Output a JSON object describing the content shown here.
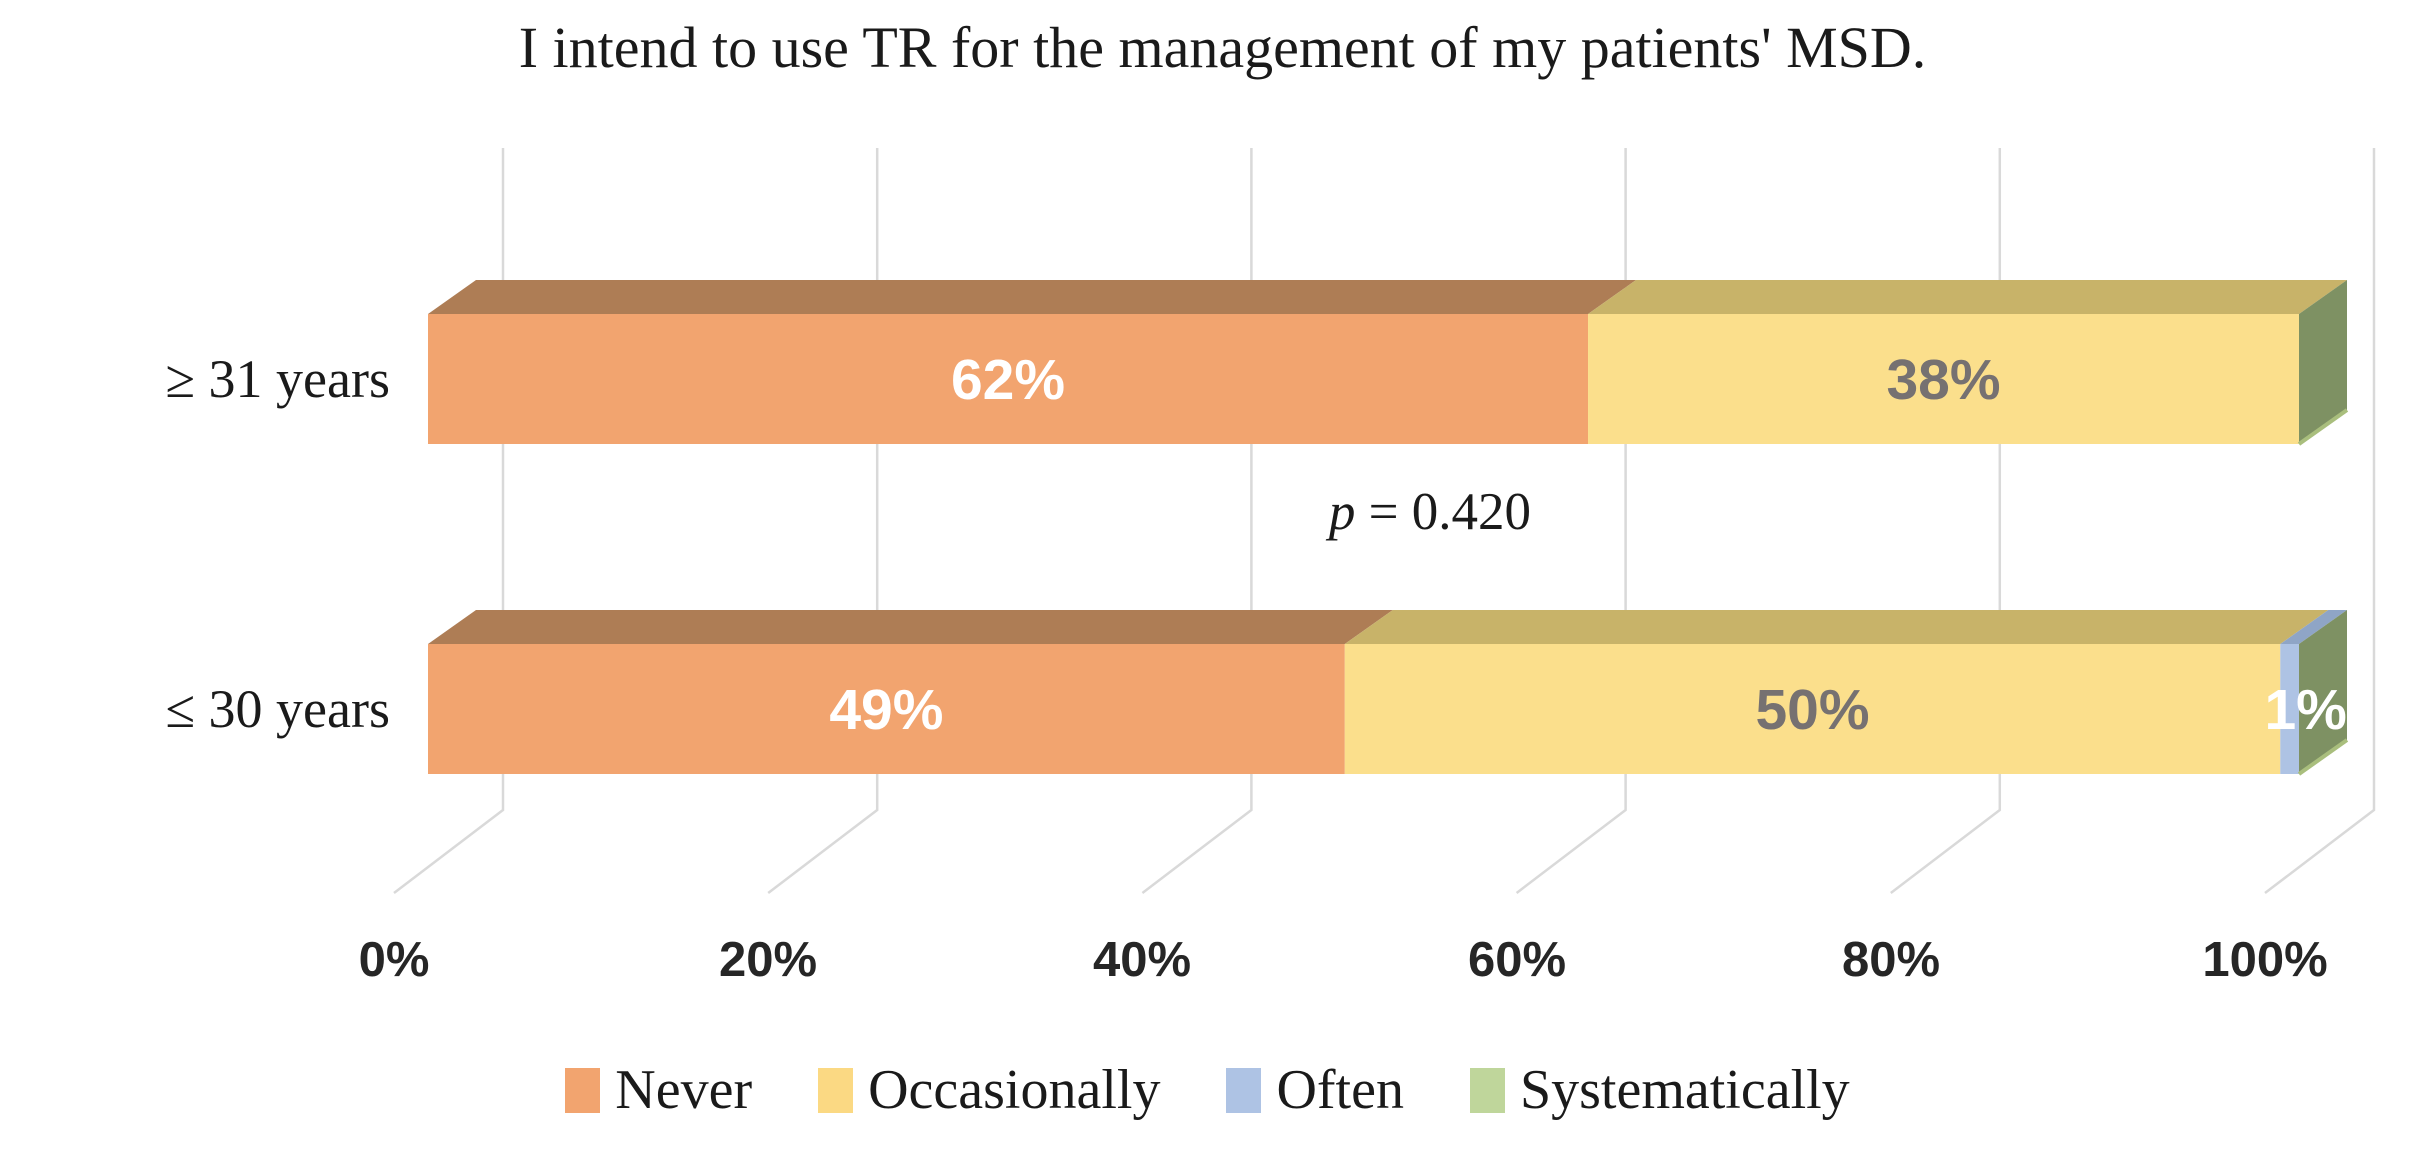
{
  "title": "I intend to use TR for the management of my patients' MSD.",
  "annotation": {
    "var": "p",
    "rest": " = 0.420"
  },
  "chart_data": {
    "type": "bar",
    "subtype": "stacked-horizontal-3d",
    "title": "I intend to use TR for the management of my patients' MSD.",
    "categories": [
      "≥ 31 years",
      "≤ 30 years"
    ],
    "series": [
      {
        "name": "Never",
        "values": [
          62,
          49
        ]
      },
      {
        "name": "Occasionally",
        "values": [
          38,
          50
        ]
      },
      {
        "name": "Often",
        "values": [
          0,
          1
        ]
      },
      {
        "name": "Systematically",
        "values": [
          0,
          0
        ]
      }
    ],
    "data_labels": [
      [
        "62%",
        "38%",
        "",
        ""
      ],
      [
        "49%",
        "50%",
        "1%",
        ""
      ]
    ],
    "annotation": "p = 0.420",
    "x_ticks": [
      "0%",
      "20%",
      "40%",
      "60%",
      "80%",
      "100%"
    ],
    "xlim": [
      0,
      100
    ],
    "grid": true,
    "legend": [
      "Never",
      "Occasionally",
      "Often",
      "Systematically"
    ],
    "legend_position": "bottom"
  },
  "colors": {
    "series_front": [
      "#F2A46F",
      "#FBDF8C",
      "#AEC3E4",
      "#BFD69B"
    ],
    "series_top": [
      "#AE7D55",
      "#C8B369",
      "#8FA5C6",
      "#9CB77A"
    ],
    "series_label": [
      "#FFFFFF",
      "#767171",
      "#FFFFFF",
      "#FFFFFF"
    ],
    "legend_swatches": [
      "#F2A46F",
      "#FBD983",
      "#AEC3E4",
      "#BFD69B"
    ],
    "end_cap": "#7E9163",
    "end_cap_edge": "#A9BE7D",
    "gridline": "#D9D9D9",
    "title_color": "#1A1A1A"
  }
}
